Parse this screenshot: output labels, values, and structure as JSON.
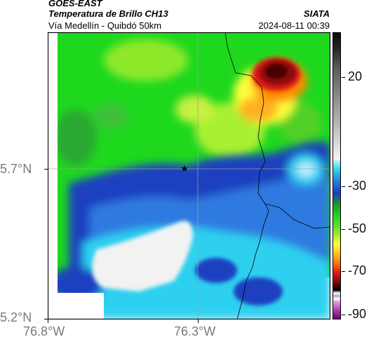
{
  "header": {
    "satellite": "GOES-EAST",
    "product": "Temperatura de Brillo CH13",
    "route": "Vía Medellín - Quibdó 50km",
    "org": "SIATA",
    "datetime": "2024-08-11 00:39"
  },
  "map": {
    "lat_ticks": [
      "5.7°N",
      "5.2°N"
    ],
    "lon_ticks": [
      "76.8°W",
      "76.3°W"
    ],
    "marker": "star",
    "gridlines": true
  },
  "colorbar": {
    "labels": [
      "20",
      "-30",
      "-50",
      "-70",
      "-90"
    ],
    "colors": {
      "cold_magenta": "#b040b0",
      "black": "#1a1a1a",
      "dark_red": "#5a0000",
      "red": "#d81818",
      "orange": "#ff8a00",
      "yellow": "#ffff3a",
      "green": "#1ed81e",
      "cyan": "#2fd0f0",
      "blue": "#1a3fc0",
      "white": "#f0f0f0"
    }
  }
}
